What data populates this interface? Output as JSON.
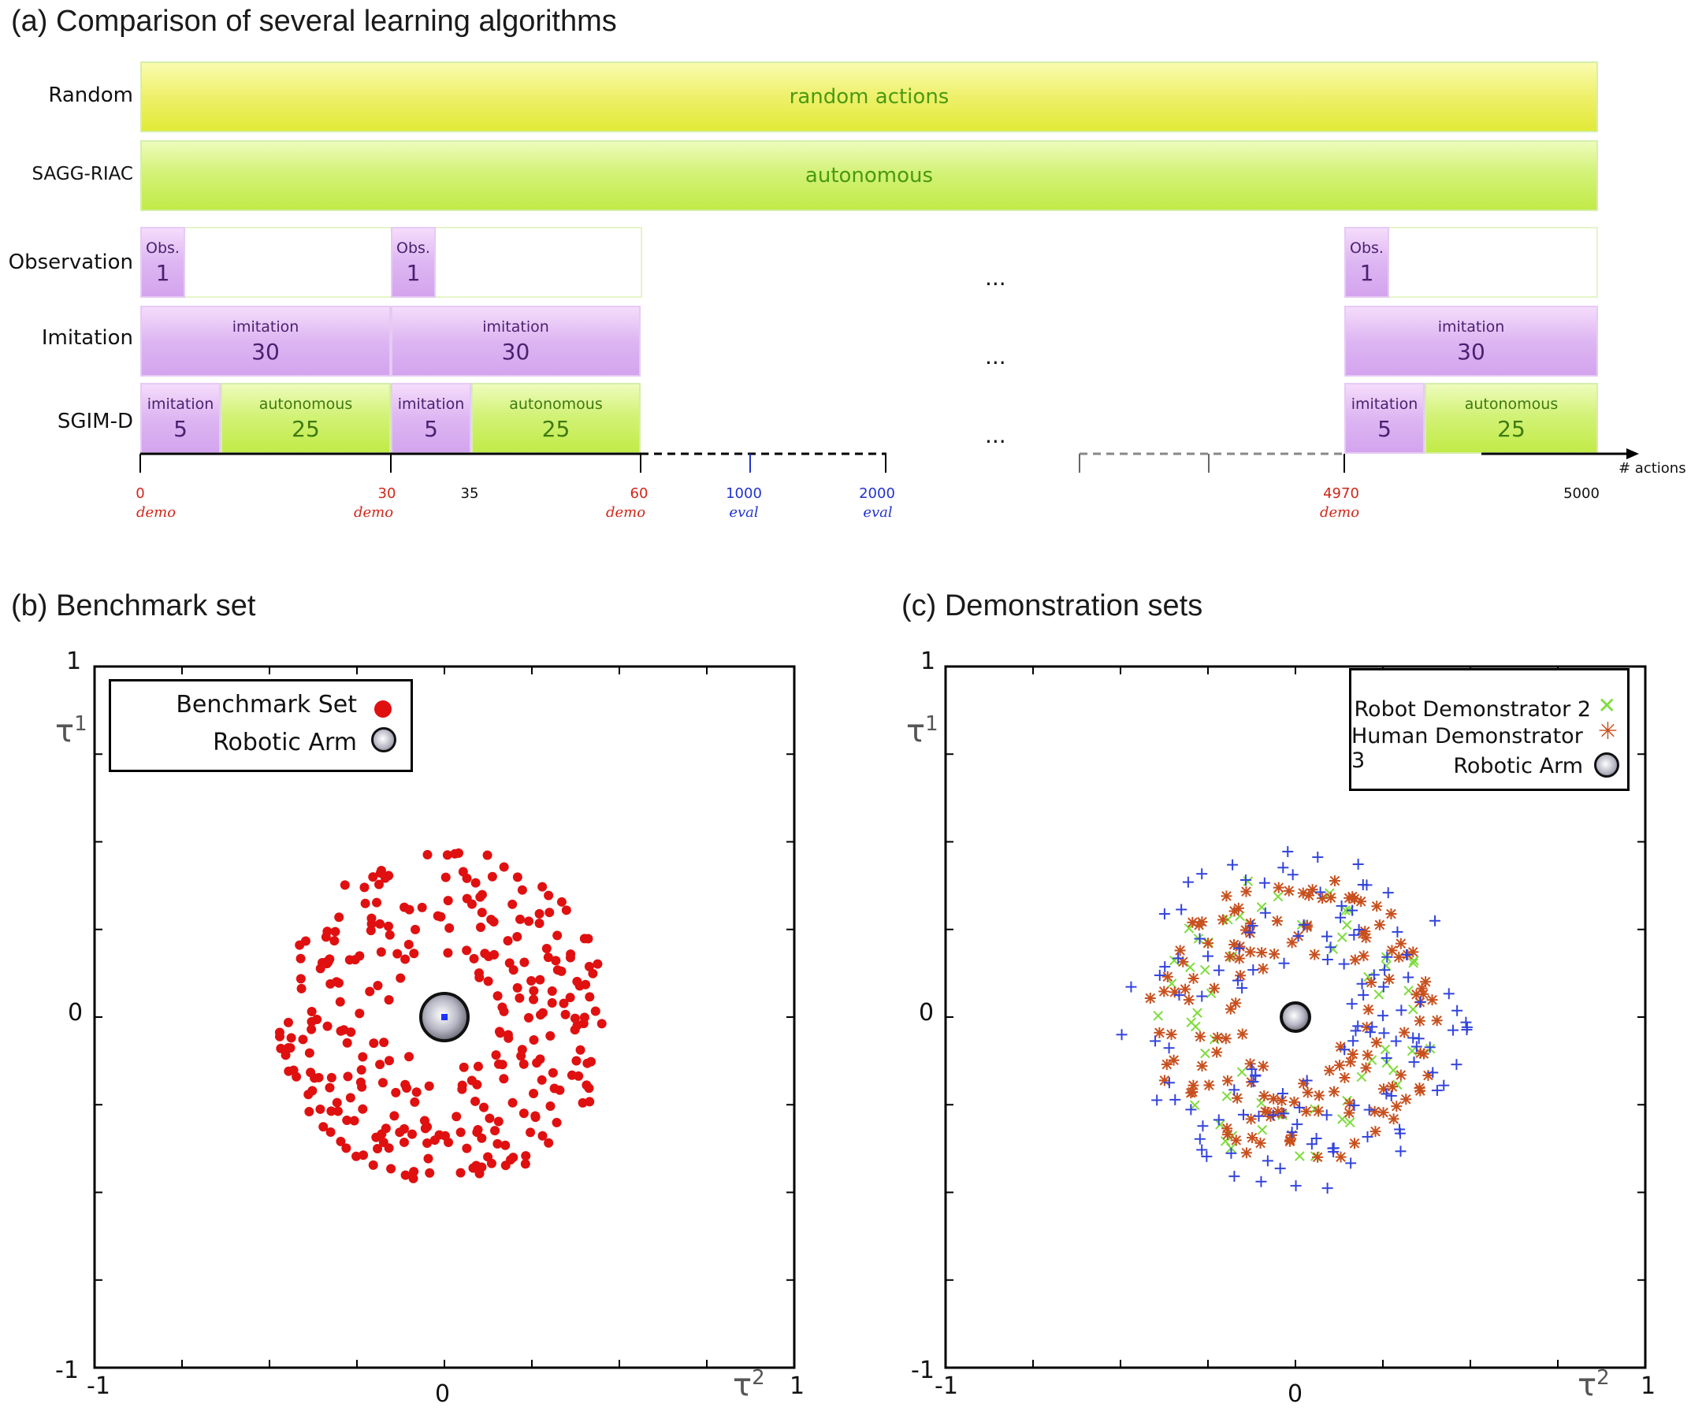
{
  "panel_a": {
    "title": "(a) Comparison of several learning algorithms",
    "rows": {
      "random": "Random",
      "sagg": "SAGG-RIAC",
      "observation": "Observation",
      "imitation": "Imitation",
      "sgimd": "SGIM-D"
    },
    "bars": {
      "random_actions": "random actions",
      "autonomous": "autonomous",
      "obs_label": "Obs.",
      "obs_value": "1",
      "imitation_label": "imitation",
      "imitation_value": "30",
      "sgim_imitation_value": "5",
      "autonomous_label": "autonomous",
      "autonomous_value": "25",
      "ellipsis": "..."
    },
    "axis": {
      "label": "# actions",
      "ticks": [
        "0",
        "30",
        "35",
        "60",
        "1000",
        "2000",
        "4970",
        "5000"
      ],
      "notes": {
        "demo": "demo",
        "eval": "eval"
      }
    },
    "colors": {
      "demo": "#d0261a",
      "eval": "#2233cc"
    }
  },
  "panel_b": {
    "title": "(b) Benchmark set",
    "legend": {
      "benchmark": "Benchmark Set",
      "arm": "Robotic Arm"
    },
    "axes": {
      "y_top": "1",
      "y_mid": "0",
      "y_bottom": "-1",
      "x_left": "-1",
      "x_mid": "0",
      "x_right": "1",
      "ylabel": "τ",
      "ylabel_sup": "1",
      "xlabel": "τ",
      "xlabel_sup": "2"
    }
  },
  "panel_c": {
    "title": "(c) Demonstration sets",
    "legend": {
      "robot2": "Robot Demonstrator 2",
      "human3": "Human Demonstrator 3",
      "arm": "Robotic Arm"
    },
    "axes": {
      "y_top": "1",
      "y_mid": "0",
      "y_bottom": "-1",
      "x_left": "-1",
      "x_mid": "0",
      "x_right": "1",
      "ylabel": "τ",
      "ylabel_sup": "1",
      "xlabel": "τ",
      "xlabel_sup": "2"
    }
  },
  "chart_data": [
    {
      "type": "scatter",
      "title": "(b) Benchmark set",
      "xlim": [
        -1,
        1
      ],
      "ylim": [
        -1,
        1
      ],
      "series": [
        {
          "name": "Benchmark Set",
          "color": "#e01010",
          "marker": "dot",
          "count": 300,
          "distribution": "annulus",
          "r_min": 0.15,
          "r_max": 0.48
        },
        {
          "name": "Robotic Arm",
          "x": [
            0
          ],
          "y": [
            0
          ]
        }
      ]
    },
    {
      "type": "scatter",
      "title": "(c) Demonstration sets",
      "xlim": [
        -1,
        1
      ],
      "ylim": [
        -1,
        1
      ],
      "series": [
        {
          "name": "Robot Demonstrator 2",
          "color": "#7ddc3c",
          "marker": "x",
          "count": 60,
          "r_min": 0.2,
          "r_max": 0.42
        },
        {
          "name": "Human Demonstrator 3",
          "color": "#c8501e",
          "marker": "asterisk",
          "count": 150,
          "r_min": 0.15,
          "r_max": 0.42
        },
        {
          "name": "unlabeled",
          "color": "#3344dd",
          "marker": "plus",
          "count": 130,
          "r_min": 0.15,
          "r_max": 0.5
        },
        {
          "name": "Robotic Arm",
          "x": [
            0
          ],
          "y": [
            0
          ]
        }
      ]
    }
  ]
}
